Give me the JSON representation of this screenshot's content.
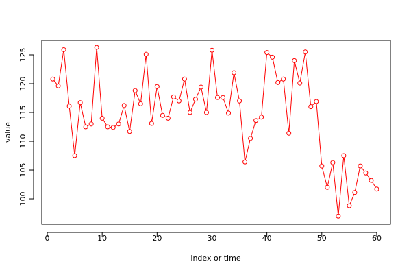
{
  "chart_data": {
    "type": "line",
    "xlabel": "index or time",
    "ylabel": "value",
    "x": [
      1,
      2,
      3,
      4,
      5,
      6,
      7,
      8,
      9,
      10,
      11,
      12,
      13,
      14,
      15,
      16,
      17,
      18,
      19,
      20,
      21,
      22,
      23,
      24,
      25,
      26,
      27,
      28,
      29,
      30,
      31,
      32,
      33,
      34,
      35,
      36,
      37,
      38,
      39,
      40,
      41,
      42,
      43,
      44,
      45,
      46,
      47,
      48,
      49,
      50,
      51,
      52,
      53,
      54,
      55,
      56,
      57,
      58,
      59,
      60
    ],
    "series": [
      {
        "color": "#ff0000",
        "values": [
          120.8,
          119.6,
          125.9,
          116.1,
          107.5,
          116.7,
          112.5,
          113.0,
          126.3,
          114.0,
          112.5,
          112.4,
          113.0,
          116.2,
          111.7,
          118.8,
          116.5,
          125.1,
          113.1,
          119.5,
          114.5,
          114.0,
          117.7,
          117.0,
          120.8,
          115.0,
          117.3,
          119.4,
          115.0,
          125.8,
          117.6,
          117.6,
          114.9,
          121.9,
          117.0,
          106.4,
          110.5,
          113.6,
          114.2,
          125.4,
          124.6,
          120.2,
          120.8,
          111.4,
          124.0,
          120.1,
          125.5,
          116.0,
          116.9,
          105.7,
          102.0,
          106.3,
          97.0,
          107.5,
          98.8,
          101.1,
          105.7,
          104.5,
          103.2,
          101.7
        ]
      }
    ],
    "xlim": [
      -1.0,
      62.5
    ],
    "ylim": [
      95.6,
      127.5
    ],
    "xticks": [
      0,
      10,
      20,
      30,
      40,
      50,
      60
    ],
    "yticks": [
      100,
      105,
      110,
      115,
      120,
      125
    ]
  }
}
